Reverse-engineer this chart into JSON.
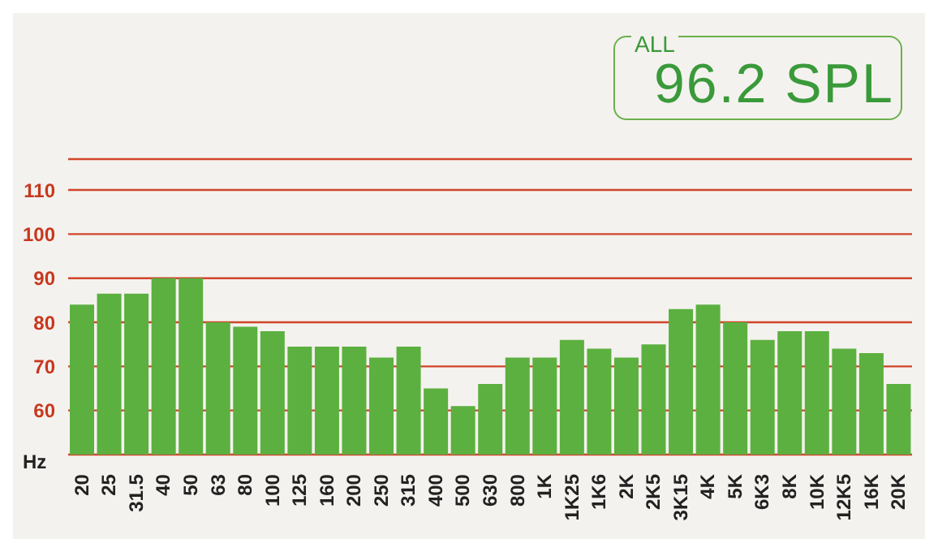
{
  "chart_data": {
    "type": "bar",
    "xlabel": "Hz",
    "categories": [
      "20",
      "25",
      "31.5",
      "40",
      "50",
      "63",
      "80",
      "100",
      "125",
      "160",
      "200",
      "250",
      "315",
      "400",
      "500",
      "630",
      "800",
      "1K",
      "1K25",
      "1K6",
      "2K",
      "2K5",
      "3K15",
      "4K",
      "5K",
      "6K3",
      "8K",
      "10K",
      "12K5",
      "16K",
      "20K"
    ],
    "values": [
      84,
      86.5,
      86.5,
      90,
      90,
      80,
      79,
      78,
      74.5,
      74.5,
      74.5,
      72,
      74.5,
      65,
      61,
      66,
      72,
      72,
      76,
      74,
      72,
      75,
      83,
      84,
      80,
      76,
      78,
      78,
      74,
      73,
      66
    ],
    "color": "#5cb040",
    "ylim": [
      50,
      117
    ],
    "yticks": [
      60,
      70,
      80,
      90,
      100,
      110
    ],
    "grid": "y",
    "annotations": [
      "ALL",
      "96.2 SPL"
    ]
  }
}
